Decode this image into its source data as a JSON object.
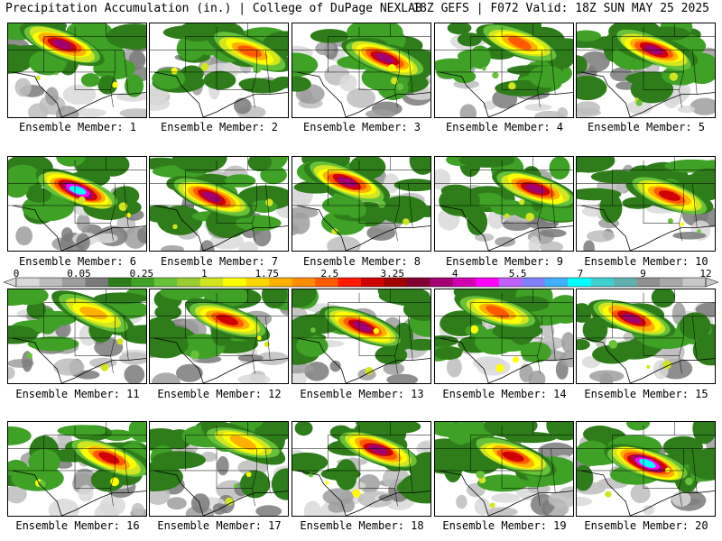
{
  "header": {
    "title_left": "Precipitation Accumulation (in.) | College of DuPage NEXLAB",
    "title_right": "18Z GEFS | F072 Valid: 18Z SUN MAY 25 2025"
  },
  "colorbar": {
    "labels": [
      "0",
      "0.05",
      "0.25",
      "1",
      "1.75",
      "2.5",
      "3.25",
      "4",
      "5.5",
      "7",
      "9",
      "12"
    ],
    "colors": [
      "#d9d9d9",
      "#bdbdbd",
      "#9e9e9e",
      "#7a7a7a",
      "#2e7d1a",
      "#3fa126",
      "#67c23a",
      "#9acd32",
      "#d2e521",
      "#ffff00",
      "#ffd700",
      "#ffb000",
      "#ff8c00",
      "#ff5a00",
      "#ff1a00",
      "#d00000",
      "#a00000",
      "#800030",
      "#a00070",
      "#d000b0",
      "#ff00ff",
      "#c060ff",
      "#8080ff",
      "#40b0ff",
      "#00ffff",
      "#40d0d0",
      "#60b0b0",
      "#909090",
      "#a8a8a8",
      "#c8c8c8"
    ]
  },
  "panels": [
    {
      "label": "Ensemble Member: 1",
      "max_level": 7
    },
    {
      "label": "Ensemble Member: 2",
      "max_level": 5
    },
    {
      "label": "Ensemble Member: 3",
      "max_level": 7
    },
    {
      "label": "Ensemble Member: 4",
      "max_level": 5
    },
    {
      "label": "Ensemble Member: 5",
      "max_level": 7
    },
    {
      "label": "Ensemble Member: 6",
      "max_level": 9
    },
    {
      "label": "Ensemble Member: 7",
      "max_level": 7
    },
    {
      "label": "Ensemble Member: 8",
      "max_level": 7
    },
    {
      "label": "Ensemble Member: 9",
      "max_level": 7
    },
    {
      "label": "Ensemble Member: 10",
      "max_level": 6
    },
    {
      "label": "Ensemble Member: 11",
      "max_level": 4
    },
    {
      "label": "Ensemble Member: 12",
      "max_level": 6
    },
    {
      "label": "Ensemble Member: 13",
      "max_level": 7
    },
    {
      "label": "Ensemble Member: 14",
      "max_level": 5
    },
    {
      "label": "Ensemble Member: 15",
      "max_level": 7
    },
    {
      "label": "Ensemble Member: 16",
      "max_level": 6
    },
    {
      "label": "Ensemble Member: 17",
      "max_level": 4
    },
    {
      "label": "Ensemble Member: 18",
      "max_level": 7
    },
    {
      "label": "Ensemble Member: 19",
      "max_level": 6
    },
    {
      "label": "Ensemble Member: 20",
      "max_level": 9
    }
  ]
}
